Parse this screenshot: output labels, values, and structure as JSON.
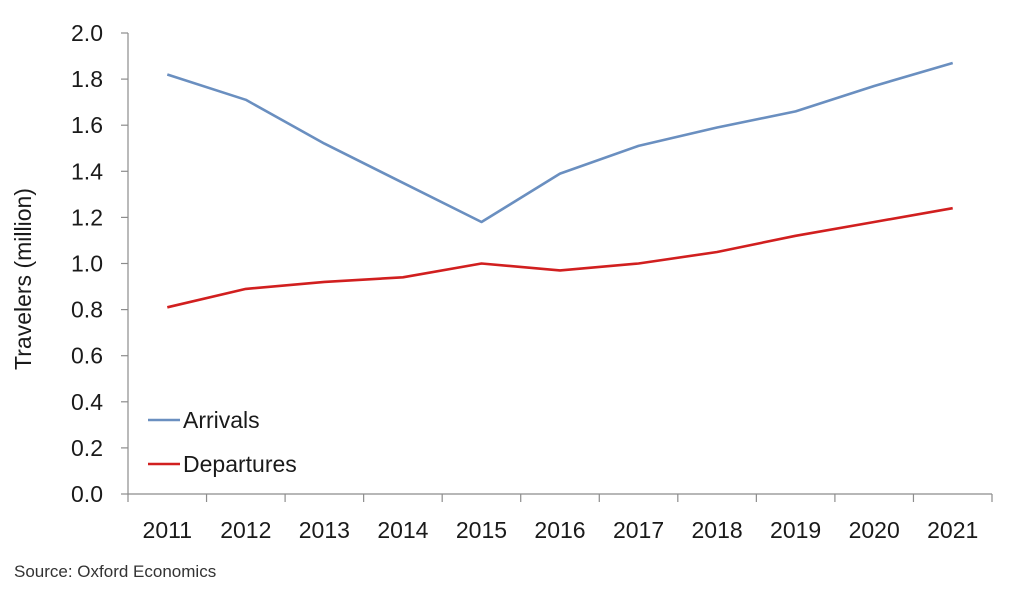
{
  "chart_data": {
    "type": "line",
    "x": [
      "2011",
      "2012",
      "2013",
      "2014",
      "2015",
      "2016",
      "2017",
      "2018",
      "2019",
      "2020",
      "2021"
    ],
    "series": [
      {
        "name": "Arrivals",
        "color": "#6a8fc0",
        "values": [
          1.82,
          1.71,
          1.52,
          1.35,
          1.18,
          1.39,
          1.51,
          1.59,
          1.66,
          1.77,
          1.87
        ]
      },
      {
        "name": "Departures",
        "color": "#d11f1f",
        "values": [
          0.81,
          0.89,
          0.92,
          0.94,
          1.0,
          0.97,
          1.0,
          1.05,
          1.12,
          1.18,
          1.24
        ]
      }
    ],
    "ylabel": "Travelers (million)",
    "xlabel": "",
    "ylim": [
      0,
      2.0
    ],
    "yticks": [
      "0.0",
      "0.2",
      "0.4",
      "0.6",
      "0.8",
      "1.0",
      "1.2",
      "1.4",
      "1.6",
      "1.8",
      "2.0"
    ],
    "grid": false,
    "legend": "bottom-left"
  },
  "source": "Source: Oxford Economics"
}
